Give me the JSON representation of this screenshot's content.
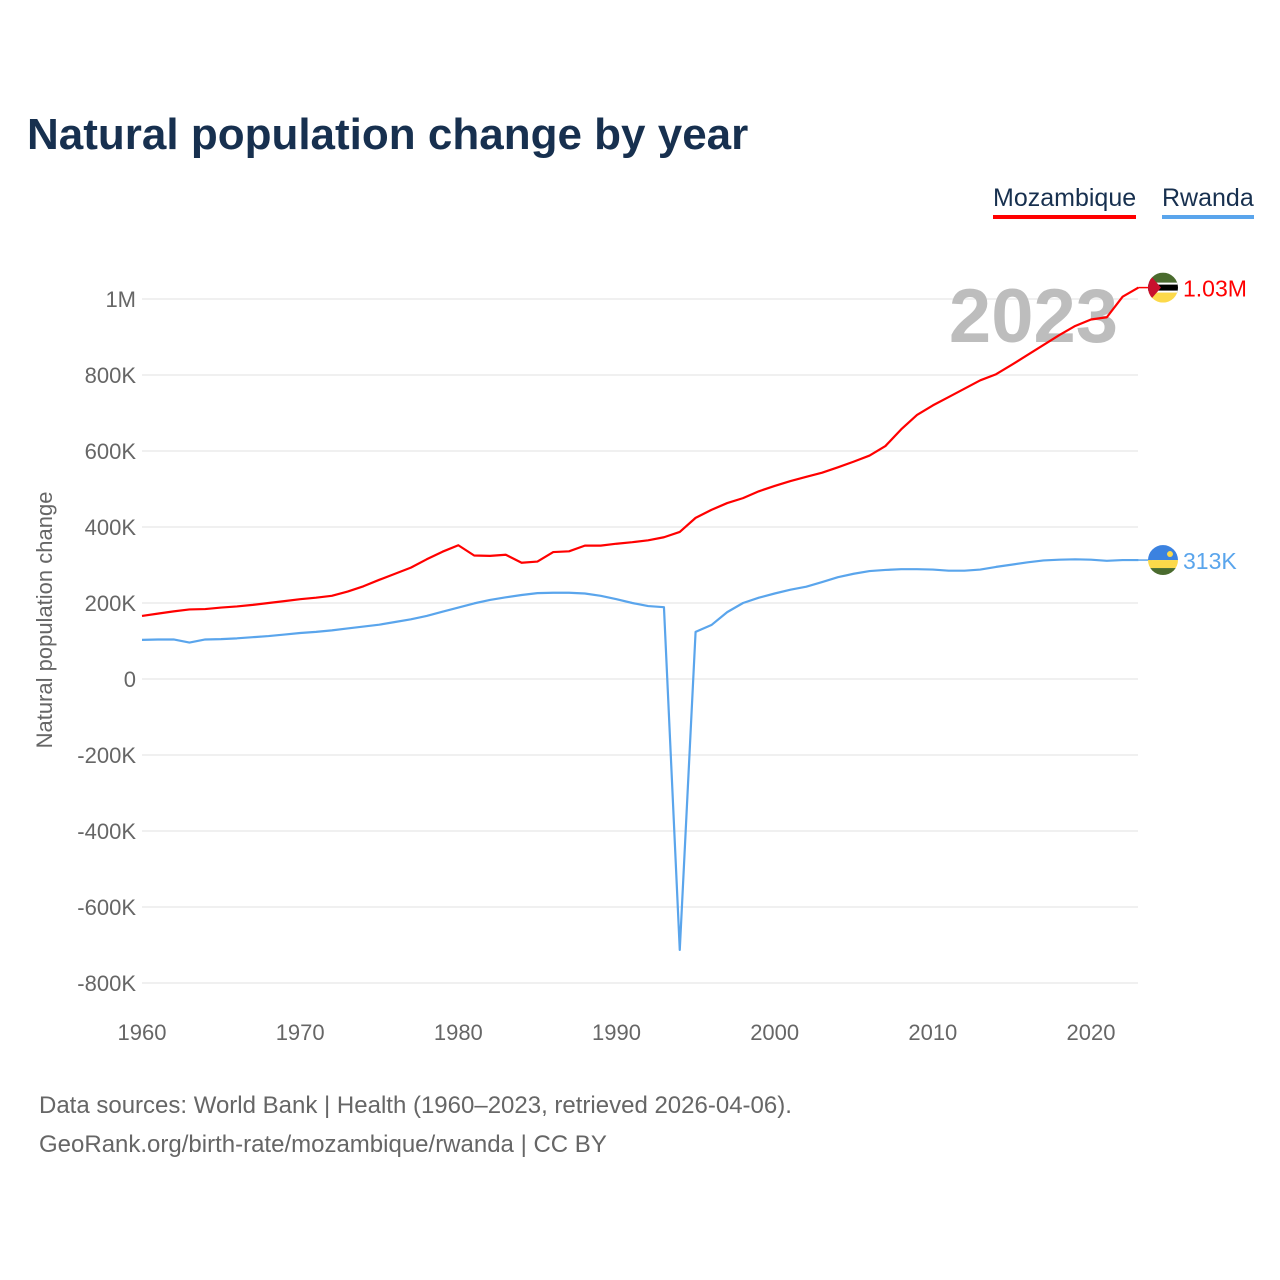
{
  "title": "Natural population change by year",
  "footer": {
    "line1": "Data sources: World Bank | Health (1960–2023, retrieved 2026-04-06).",
    "line2": "GeoRank.org/birth-rate/mozambique/rwanda | CC BY"
  },
  "chart_data": {
    "type": "line",
    "title": "Natural population change by year",
    "xlabel": "",
    "ylabel": "Natural population change",
    "xlim": [
      1960,
      2023
    ],
    "ylim": [
      -800000,
      1000000
    ],
    "x_ticks": [
      1960,
      1970,
      1980,
      1990,
      2000,
      2010,
      2020
    ],
    "y_ticks": [
      {
        "v": 1000000,
        "label": "1M"
      },
      {
        "v": 800000,
        "label": "800K"
      },
      {
        "v": 600000,
        "label": "600K"
      },
      {
        "v": 400000,
        "label": "400K"
      },
      {
        "v": 200000,
        "label": "200K"
      },
      {
        "v": 0,
        "label": "0"
      },
      {
        "v": -200000,
        "label": "-200K"
      },
      {
        "v": -400000,
        "label": "-400K"
      },
      {
        "v": -600000,
        "label": "-600K"
      },
      {
        "v": -800000,
        "label": "-800K"
      }
    ],
    "grid": true,
    "legend_position": "top-right",
    "year_watermark": "2023",
    "x_start": 1960,
    "series": [
      {
        "name": "Mozambique",
        "color": "#ff0000",
        "end_label": "1.03M",
        "values": [
          166,
          172,
          178,
          183,
          184,
          188,
          191,
          195,
          200,
          205,
          210,
          214,
          219,
          230,
          244,
          261,
          277,
          293,
          315,
          335,
          352,
          325,
          324,
          327,
          306,
          309,
          334,
          336,
          351,
          351,
          356,
          360,
          365,
          373,
          387,
          424,
          445,
          463,
          476,
          494,
          508,
          521,
          532,
          543,
          557,
          572,
          588,
          613,
          657,
          695,
          720,
          742,
          764,
          786,
          802,
          827,
          853,
          879,
          905,
          929,
          946,
          952,
          1006,
          1030
        ]
      },
      {
        "name": "Rwanda",
        "color": "#5aa5ec",
        "end_label": "313K",
        "values": [
          103,
          104,
          104,
          96,
          104,
          105,
          107,
          110,
          113,
          117,
          121,
          124,
          128,
          133,
          138,
          143,
          150,
          157,
          166,
          177,
          188,
          199,
          208,
          215,
          221,
          226,
          227,
          227,
          225,
          219,
          210,
          200,
          192,
          189,
          -713,
          124,
          142,
          176,
          200,
          214,
          225,
          235,
          243,
          255,
          268,
          277,
          284,
          287,
          289,
          289,
          288,
          285,
          285,
          288,
          295,
          301,
          307,
          312,
          314,
          315,
          314,
          311,
          313,
          313
        ]
      }
    ],
    "values_unit": "thousands"
  }
}
